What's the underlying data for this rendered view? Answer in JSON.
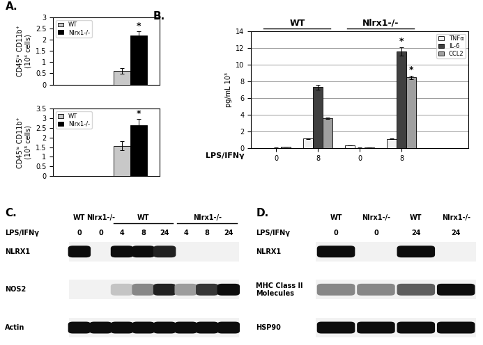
{
  "chart_data": [
    {
      "type": "bar",
      "panel_label": "A.",
      "y_label": "CD45ˡᵒ CD11b⁺\n(10⁴ cells)",
      "categories": [
        null
      ],
      "ylim": [
        0,
        3
      ],
      "yticks": [
        0,
        0.5,
        1,
        1.5,
        2,
        2.5,
        3
      ],
      "legend": "upper left",
      "series": [
        {
          "name": "WT",
          "color": "#c8c8c8",
          "values": [
            0.6
          ],
          "errors": [
            0.12
          ]
        },
        {
          "name": "Nlrx1-/-",
          "color": "#000000",
          "values": [
            2.2
          ],
          "errors": [
            0.18
          ],
          "significance": [
            "*"
          ]
        }
      ]
    },
    {
      "type": "bar",
      "y_label": "CD45ˡᵒ CD11b⁺\n(10³ cells)",
      "categories": [
        null
      ],
      "ylim": [
        0,
        3.5
      ],
      "yticks": [
        0,
        0.5,
        1,
        1.5,
        2,
        2.5,
        3,
        3.5
      ],
      "legend": "upper left",
      "series": [
        {
          "name": "WT",
          "color": "#c8c8c8",
          "values": [
            1.57
          ],
          "errors": [
            0.22
          ]
        },
        {
          "name": "Nlrx1-/-",
          "color": "#000000",
          "values": [
            2.65
          ],
          "errors": [
            0.3
          ],
          "significance": [
            "*"
          ]
        }
      ]
    },
    {
      "type": "bar",
      "panel_label": "B.",
      "y_label": "pg/mL 10³",
      "x_label": "LPS/IFNγ",
      "groups": [
        "WT",
        "Nlrx1-/-"
      ],
      "categories": [
        "0",
        "8",
        "0",
        "8"
      ],
      "ylim": [
        0,
        14
      ],
      "yticks": [
        0,
        2,
        4,
        6,
        8,
        10,
        12,
        14
      ],
      "grid": true,
      "legend": "upper right",
      "series": [
        {
          "name": "TNFα",
          "color": "#f0f0f0",
          "values": [
            0.02,
            1.15,
            0.35,
            1.12
          ],
          "errors": [
            0.01,
            0.05,
            0.03,
            0.05
          ]
        },
        {
          "name": "IL-6",
          "color": "#404040",
          "values": [
            0.05,
            7.3,
            0.05,
            11.6
          ],
          "errors": [
            0.02,
            0.3,
            0.02,
            0.5
          ],
          "significance": [
            null,
            null,
            null,
            "*"
          ]
        },
        {
          "name": "CCL2",
          "color": "#a0a0a0",
          "values": [
            0.2,
            3.6,
            0.1,
            8.45
          ],
          "errors": [
            0.03,
            0.1,
            0.02,
            0.2
          ],
          "significance": [
            null,
            null,
            null,
            "*"
          ]
        }
      ]
    }
  ],
  "blots": [
    {
      "panel_label": "C.",
      "header": [
        {
          "label": "WT",
          "span": 1
        },
        {
          "label": "Nlrx1-/-",
          "span": 1
        },
        {
          "label": "WT",
          "span": 3
        },
        {
          "label": "Nlrx1-/-",
          "span": 3
        }
      ],
      "condition_label": "LPS/IFNγ",
      "conditions": [
        "0",
        "0",
        "4",
        "8",
        "24",
        "4",
        "8",
        "24"
      ],
      "rows": [
        {
          "label": "NLRX1",
          "intensity": [
            1,
            0,
            1,
            1,
            0.9,
            0,
            0,
            0
          ]
        },
        {
          "label": "NOS2",
          "intensity": [
            0,
            0,
            0.1,
            0.4,
            0.9,
            0.3,
            0.8,
            1
          ]
        },
        {
          "label": "Actin",
          "intensity": [
            1,
            1,
            1,
            1,
            1,
            1,
            1,
            1
          ]
        }
      ]
    },
    {
      "panel_label": "D.",
      "header": [
        {
          "label": "WT",
          "span": 1
        },
        {
          "label": "Nlrx1-/-",
          "span": 1
        },
        {
          "label": "WT",
          "span": 1
        },
        {
          "label": "Nlrx1-/-",
          "span": 1
        }
      ],
      "condition_label": "LPS/IFNγ",
      "conditions": [
        "0",
        "0",
        "24",
        "24"
      ],
      "rows": [
        {
          "label": "NLRX1",
          "intensity": [
            1,
            0,
            1,
            0
          ]
        },
        {
          "label": "MHC Class II\nMolecules",
          "intensity": [
            0.4,
            0.4,
            0.6,
            1
          ]
        },
        {
          "label": "HSP90",
          "intensity": [
            1,
            1,
            1,
            1
          ]
        }
      ]
    }
  ]
}
